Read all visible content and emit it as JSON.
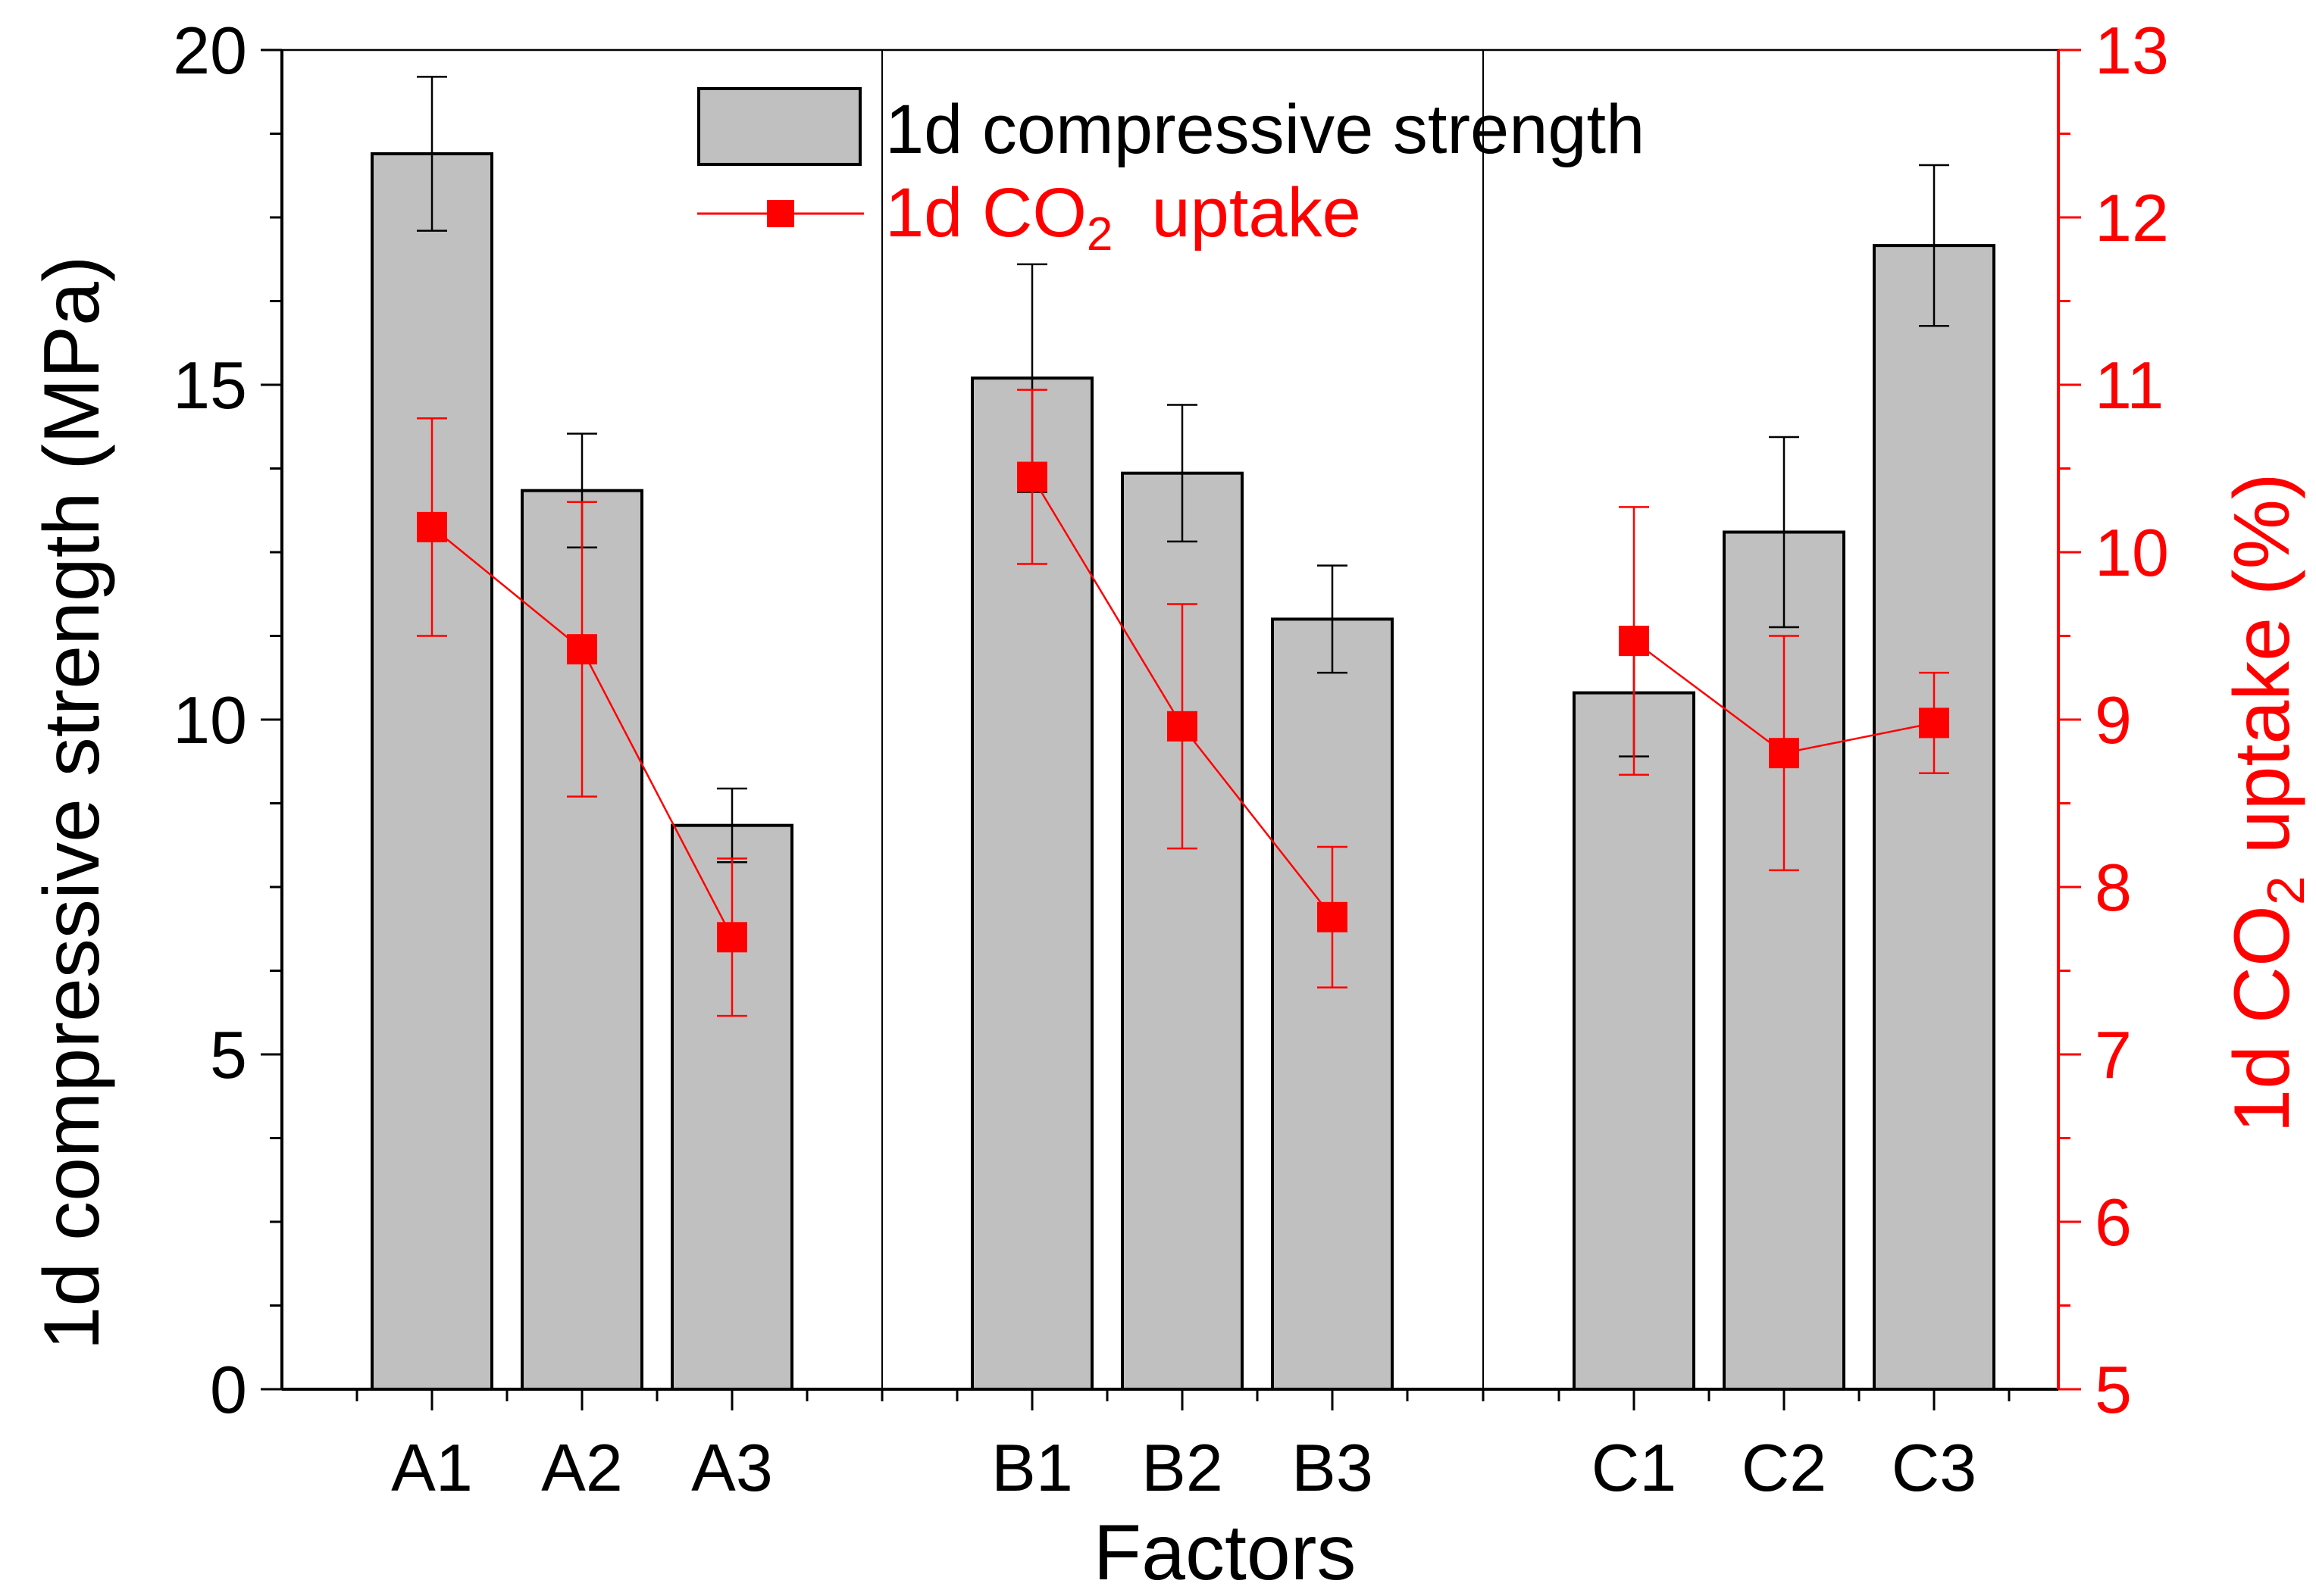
{
  "chart_data": {
    "type": "bar",
    "xlabel": "Factors",
    "ylabel_left": "1d compressive strength (MPa)",
    "ylabel_right_parts": [
      "1d CO",
      "2",
      " uptake (%)"
    ],
    "categories": [
      "A1",
      "A2",
      "A3",
      "B1",
      "B2",
      "B3",
      "C1",
      "C2",
      "C3"
    ],
    "groups": [
      [
        "A1",
        "A2",
        "A3"
      ],
      [
        "B1",
        "B2",
        "B3"
      ],
      [
        "C1",
        "C2",
        "C3"
      ]
    ],
    "ylim_left": [
      0,
      20
    ],
    "ylim_right": [
      5,
      13
    ],
    "yticks_left": [
      0,
      5,
      10,
      15,
      20
    ],
    "yticks_right": [
      5,
      6,
      7,
      8,
      9,
      10,
      11,
      12,
      13
    ],
    "series": [
      {
        "name": "1d compressive strength",
        "kind": "bar",
        "axis": "left",
        "values": [
          18.45,
          13.42,
          8.42,
          15.1,
          13.68,
          11.5,
          10.4,
          12.8,
          17.08
        ],
        "errors": [
          1.15,
          0.85,
          0.55,
          1.7,
          1.02,
          0.8,
          0.95,
          1.42,
          1.2
        ],
        "color": "#c0c0c0"
      },
      {
        "name_parts": [
          "1d CO",
          "2",
          "  uptake"
        ],
        "kind": "line",
        "axis": "right",
        "values": [
          10.15,
          9.42,
          7.7,
          10.45,
          8.96,
          7.82,
          9.47,
          8.8,
          8.98
        ],
        "errors": [
          0.65,
          0.88,
          0.47,
          0.52,
          0.73,
          0.42,
          0.8,
          0.7,
          0.3
        ],
        "color": "#ff0000"
      }
    ],
    "legend": {
      "placement": "top-center"
    }
  }
}
